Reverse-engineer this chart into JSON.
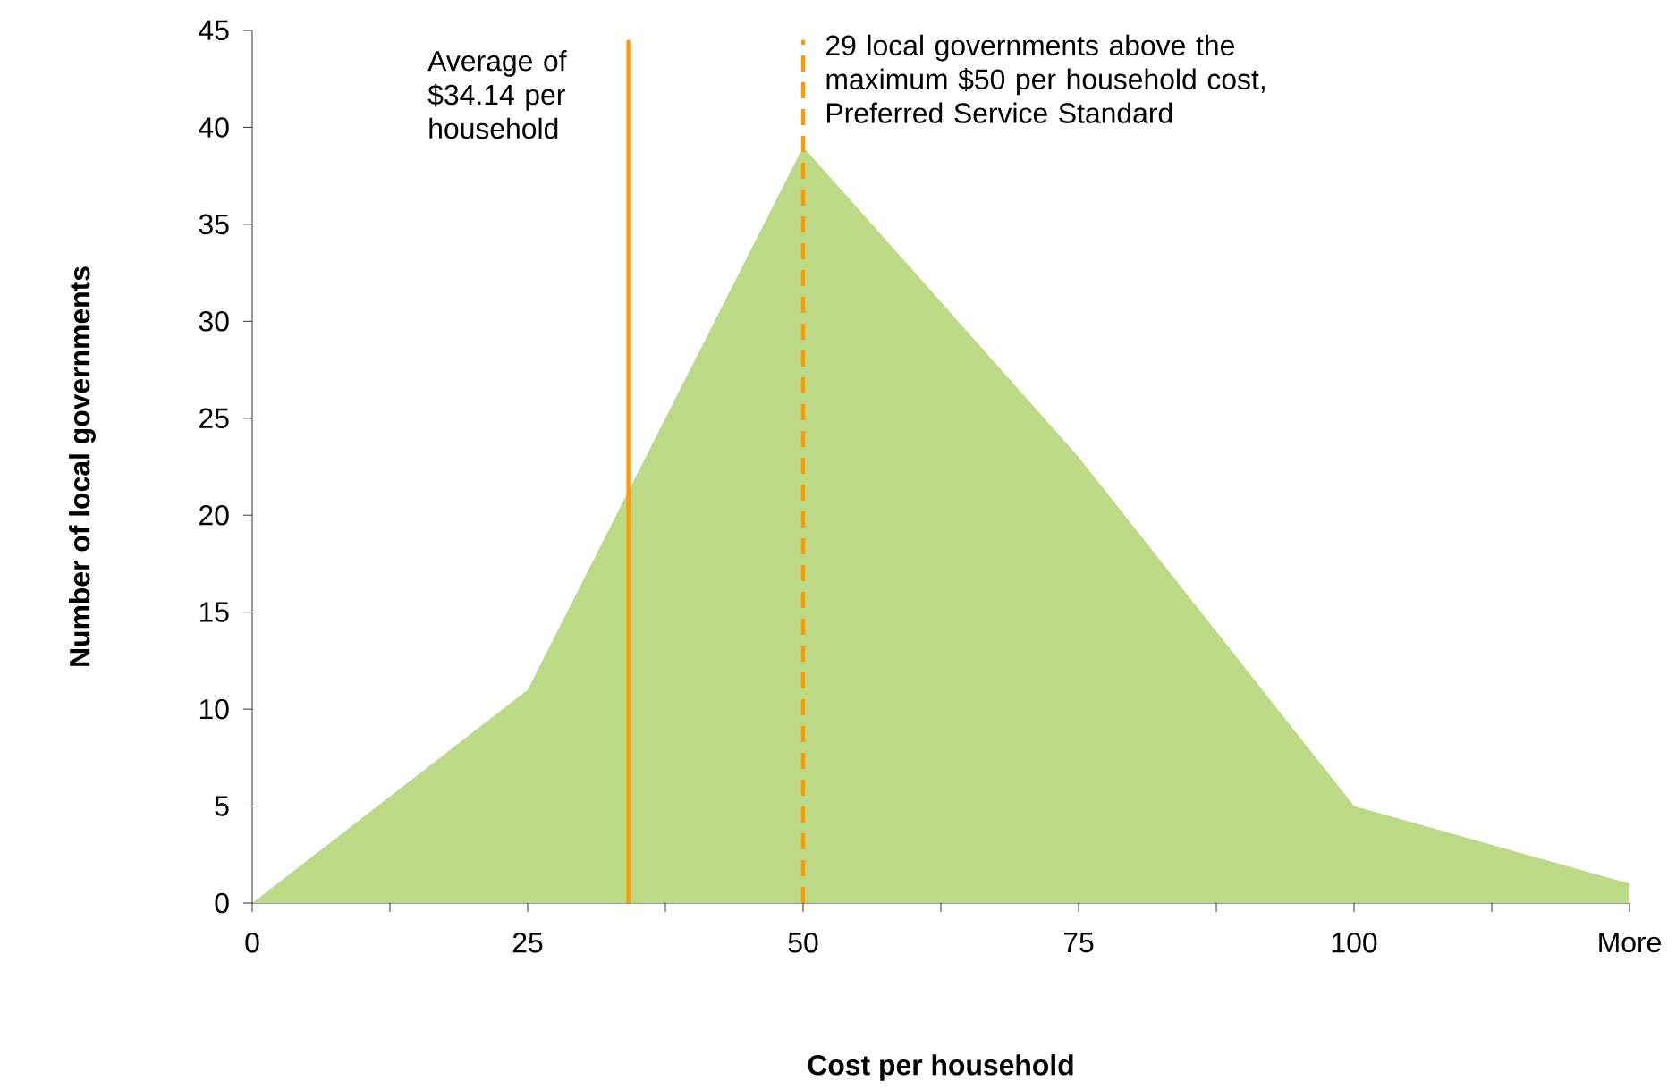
{
  "chart_data": {
    "type": "area",
    "xlabel": "Cost per household",
    "ylabel": "Number of local governments",
    "x": [
      0,
      25,
      50,
      75,
      100,
      125
    ],
    "series": [
      {
        "color": "#bcd985",
        "values": [
          0,
          11,
          39,
          23,
          5,
          1
        ]
      }
    ],
    "xlim": [
      0,
      125
    ],
    "xticks": [
      0,
      {
        "value": 12.5,
        "label": null
      },
      25,
      {
        "value": 37.5,
        "label": null
      },
      50,
      {
        "value": 62.5,
        "label": null
      },
      75,
      {
        "value": 87.5,
        "label": null
      },
      100,
      {
        "value": 112.5,
        "label": null
      },
      {
        "value": 125,
        "label": "More"
      }
    ],
    "ylim": [
      0,
      45
    ],
    "yticks": [
      0,
      5,
      10,
      15,
      20,
      25,
      30,
      35,
      40,
      45
    ],
    "grid": false,
    "ref_lines": [
      {
        "axis": "x",
        "value": 34.14,
        "label": "Average of $34.14 per household",
        "color": "#ff9900",
        "line_style": "solid"
      },
      {
        "axis": "x",
        "value": 50,
        "label": "29 local governments above the maximum $50 per household cost, Preferred Service Standard",
        "color": "#ff9900",
        "line_style": "dashed"
      }
    ]
  }
}
